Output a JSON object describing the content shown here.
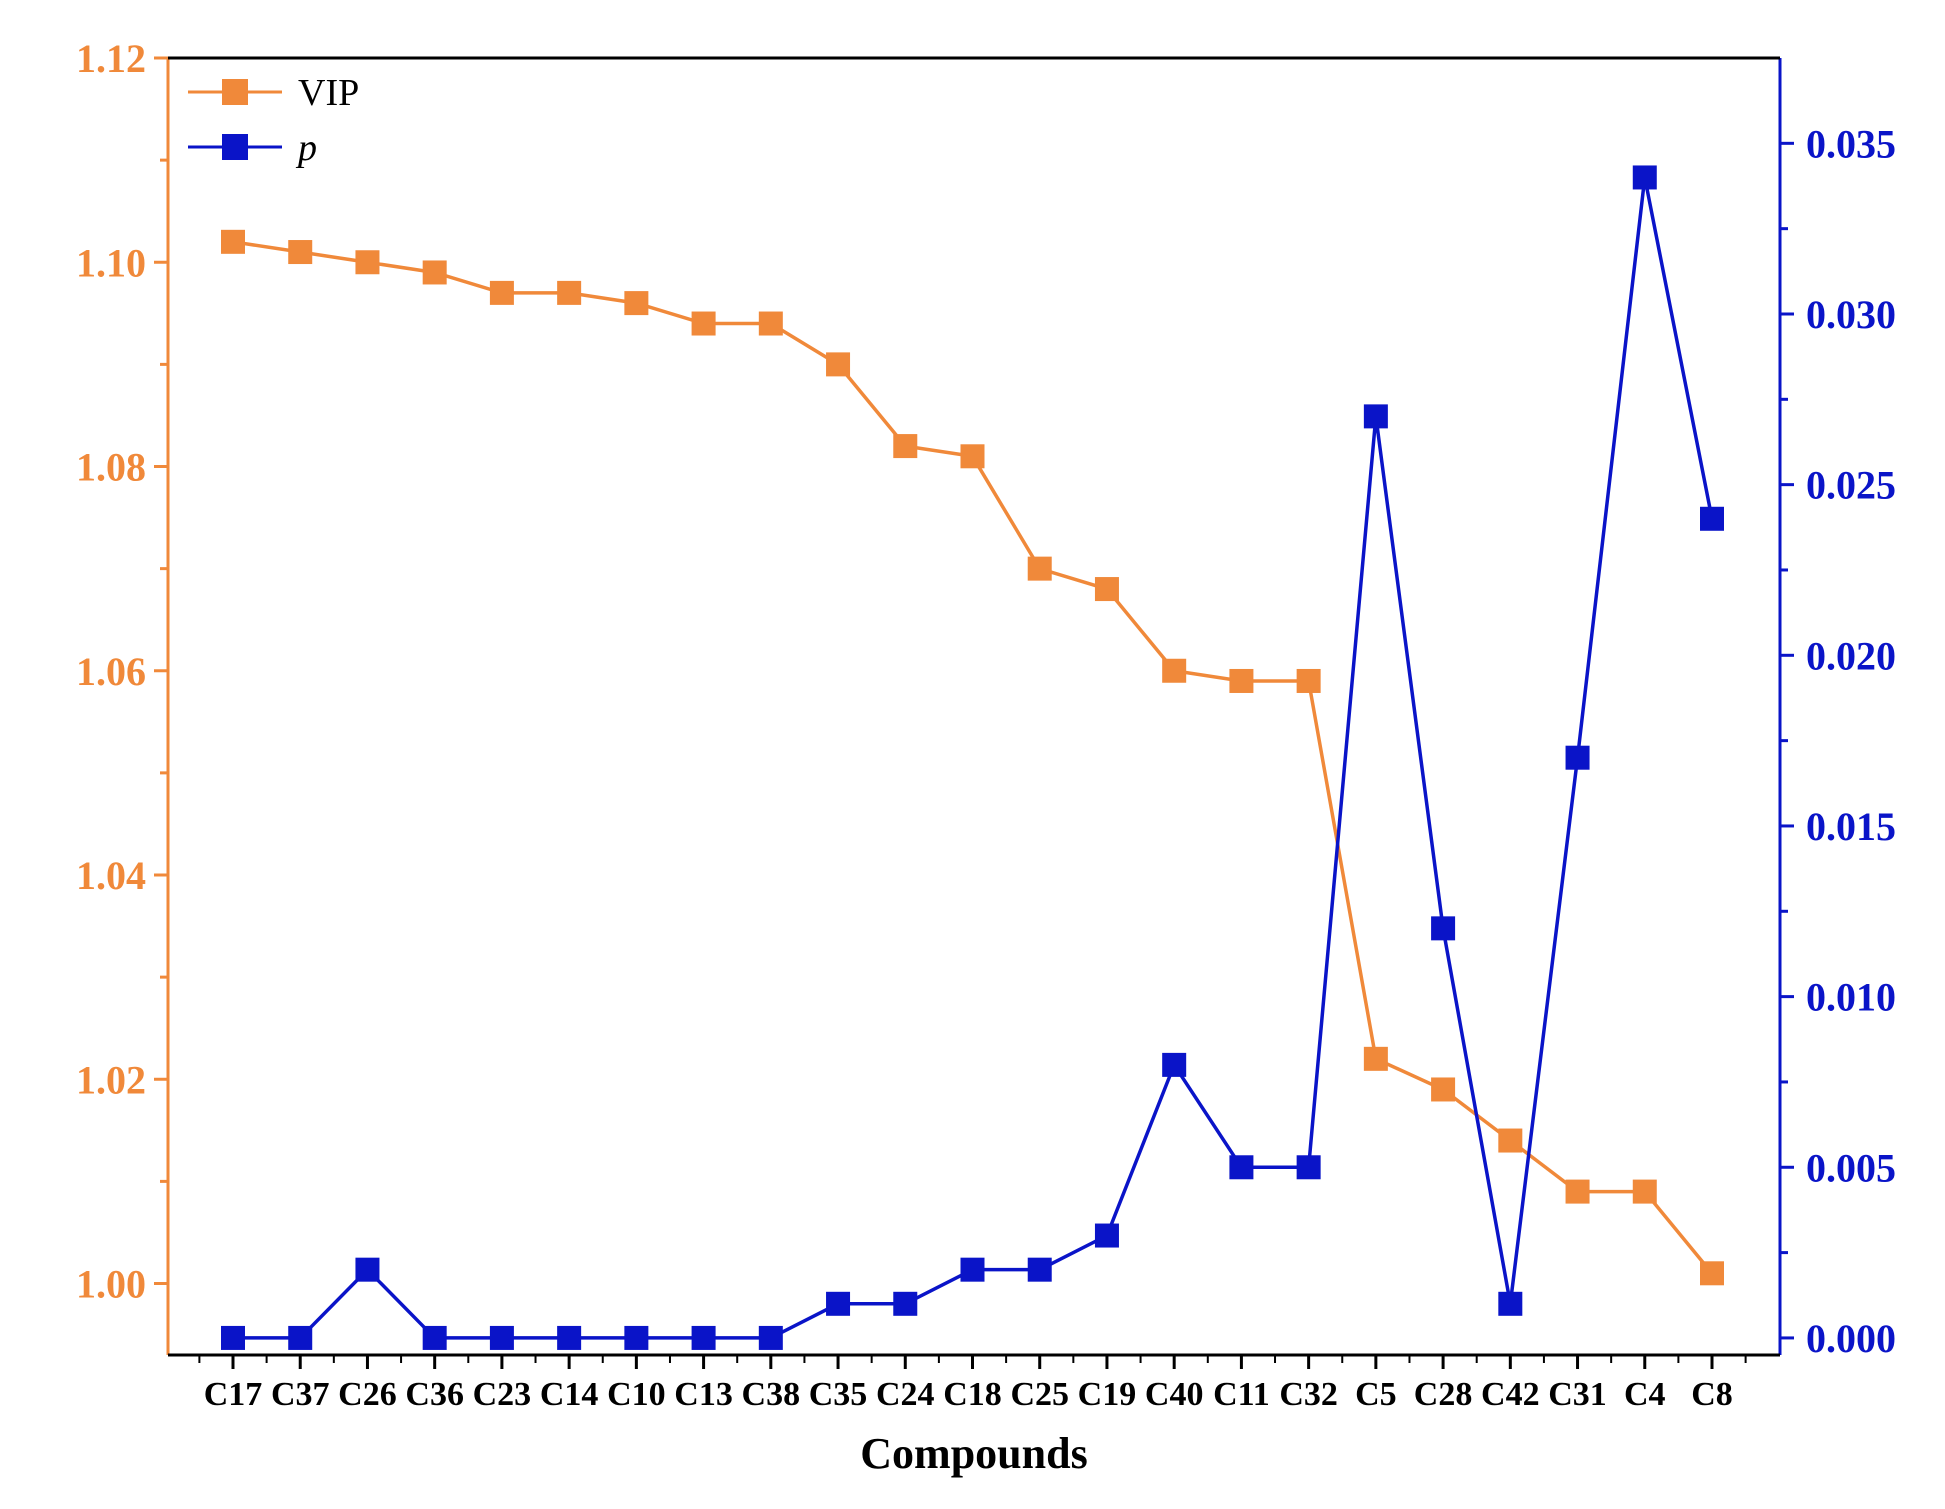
{
  "chart_data": {
    "type": "line",
    "title": "",
    "xlabel": "Compounds",
    "categories": [
      "C17",
      "C37",
      "C26",
      "C36",
      "C23",
      "C14",
      "C10",
      "C13",
      "C38",
      "C35",
      "C24",
      "C18",
      "C25",
      "C19",
      "C40",
      "C11",
      "C32",
      "C5",
      "C28",
      "C42",
      "C31",
      "C4",
      "C8"
    ],
    "series": [
      {
        "name": "VIP",
        "axis": "left",
        "color": "#f0893a",
        "values": [
          1.102,
          1.101,
          1.1,
          1.099,
          1.097,
          1.097,
          1.096,
          1.094,
          1.094,
          1.09,
          1.082,
          1.081,
          1.07,
          1.068,
          1.06,
          1.059,
          1.059,
          1.022,
          1.019,
          1.014,
          1.009,
          1.009,
          1.001
        ]
      },
      {
        "name": "p",
        "axis": "right",
        "color": "#0a14c8",
        "values": [
          0.0,
          0.0,
          0.002,
          0.0,
          0.0,
          0.0,
          0.0,
          0.0,
          0.0,
          0.001,
          0.001,
          0.002,
          0.002,
          0.003,
          0.008,
          0.005,
          0.005,
          0.027,
          0.012,
          0.001,
          0.017,
          0.034,
          0.024
        ]
      }
    ],
    "left_axis": {
      "color": "#f0893a",
      "ylim": [
        0.993,
        1.12
      ],
      "ticks": [
        "1.00",
        "1.02",
        "1.04",
        "1.06",
        "1.08",
        "1.10",
        "1.12"
      ]
    },
    "right_axis": {
      "color": "#0a14c8",
      "ylim": [
        -0.0005,
        0.0375
      ],
      "ticks": [
        "0.000",
        "0.005",
        "0.010",
        "0.015",
        "0.020",
        "0.025",
        "0.030",
        "0.035"
      ]
    },
    "legend": {
      "position": "top-left",
      "entries": [
        "VIP",
        "p"
      ]
    },
    "grid": false
  }
}
